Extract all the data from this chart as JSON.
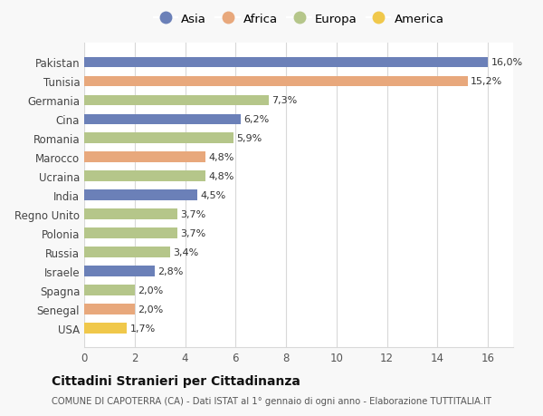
{
  "countries": [
    "Pakistan",
    "Tunisia",
    "Germania",
    "Cina",
    "Romania",
    "Marocco",
    "Ucraina",
    "India",
    "Regno Unito",
    "Polonia",
    "Russia",
    "Israele",
    "Spagna",
    "Senegal",
    "USA"
  ],
  "values": [
    16.0,
    15.2,
    7.3,
    6.2,
    5.9,
    4.8,
    4.8,
    4.5,
    3.7,
    3.7,
    3.4,
    2.8,
    2.0,
    2.0,
    1.7
  ],
  "labels": [
    "16,0%",
    "15,2%",
    "7,3%",
    "6,2%",
    "5,9%",
    "4,8%",
    "4,8%",
    "4,5%",
    "3,7%",
    "3,7%",
    "3,4%",
    "2,8%",
    "2,0%",
    "2,0%",
    "1,7%"
  ],
  "continents": [
    "Asia",
    "Africa",
    "Europa",
    "Asia",
    "Europa",
    "Africa",
    "Europa",
    "Asia",
    "Europa",
    "Europa",
    "Europa",
    "Asia",
    "Europa",
    "Africa",
    "America"
  ],
  "colors": {
    "Asia": "#6b80b8",
    "Africa": "#e8a87c",
    "Europa": "#b5c68a",
    "America": "#f0c84b"
  },
  "xlim": [
    0,
    17
  ],
  "xticks": [
    0,
    2,
    4,
    6,
    8,
    10,
    12,
    14,
    16
  ],
  "title": "Cittadini Stranieri per Cittadinanza",
  "subtitle": "COMUNE DI CAPOTERRA (CA) - Dati ISTAT al 1° gennaio di ogni anno - Elaborazione TUTTITALIA.IT",
  "background_color": "#f8f8f8",
  "plot_background": "#ffffff",
  "grid_color": "#d8d8d8"
}
